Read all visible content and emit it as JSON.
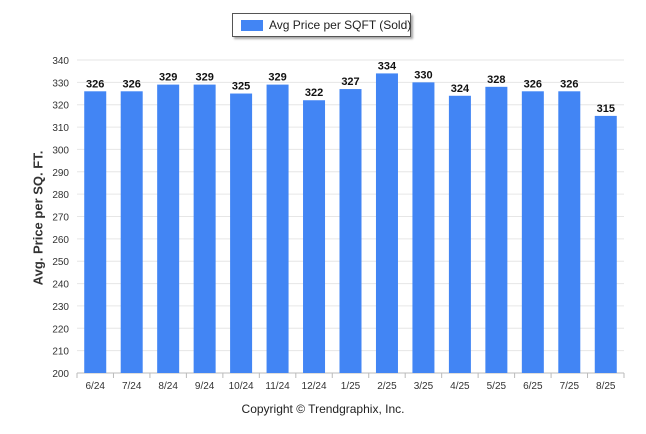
{
  "chart_data": {
    "type": "bar",
    "categories": [
      "6/24",
      "7/24",
      "8/24",
      "9/24",
      "10/24",
      "11/24",
      "12/24",
      "1/25",
      "2/25",
      "3/25",
      "4/25",
      "5/25",
      "6/25",
      "7/25",
      "8/25"
    ],
    "series": [
      {
        "name": "Avg Price per SQFT (Sold)",
        "values": [
          326,
          326,
          329,
          329,
          325,
          329,
          322,
          327,
          334,
          330,
          324,
          328,
          326,
          326,
          315
        ]
      }
    ],
    "ylabel": "Avg. Price per SQ. FT.",
    "xlabel": "",
    "ylim": [
      200,
      340
    ],
    "yticks": [
      200,
      210,
      220,
      230,
      240,
      250,
      260,
      270,
      280,
      290,
      300,
      310,
      320,
      330,
      340
    ],
    "grid": true,
    "legend_position": "top-center",
    "bar_color": "#4285f4"
  },
  "legend": {
    "label": "Avg Price per SQFT (Sold)"
  },
  "copyright": "Copyright © Trendgraphix, Inc."
}
